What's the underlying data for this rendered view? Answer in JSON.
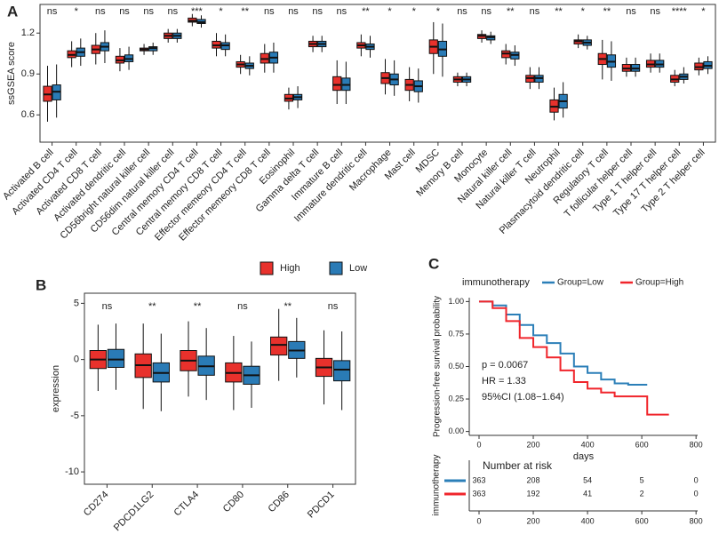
{
  "chart_data": [
    {
      "type": "box",
      "label": "A",
      "ylabel": "ssGSEA score",
      "ylim": [
        0.4,
        1.41
      ],
      "yticks": [
        0.6,
        0.9,
        1.2
      ],
      "categories": [
        "Activated B cell",
        "Activated CD4 T cell",
        "Activated CD8 T cell",
        "Activated dendritic cell",
        "CD56bright natural killer cell",
        "CD56dim natural killer cell",
        "Central memory CD4 T cell",
        "Central memory CD8 T cell",
        "Effector memeory CD4 T cell",
        "Effector memeory CD8 T cell",
        "Eosinophil",
        "Gamma delta T cell",
        "Immature  B cell",
        "Immature dendritic cell",
        "Macrophage",
        "Mast cell",
        "MDSC",
        "Memory B cell",
        "Monocyte",
        "Natural killer cell",
        "Natural killer T cell",
        "Neutrophil",
        "Plasmacytoid dendritic cell",
        "Regulatory T cell",
        "T follicular helper cell",
        "Type 1 T helper cell",
        "Type 17 T helper cell",
        "Type 2 T helper cell"
      ],
      "significance": [
        "ns",
        "*",
        "ns",
        "ns",
        "ns",
        "ns",
        "***",
        "*",
        "**",
        "ns",
        "ns",
        "ns",
        "ns",
        "**",
        "*",
        "*",
        "*",
        "ns",
        "ns",
        "**",
        "ns",
        "**",
        "*",
        "**",
        "ns",
        "ns",
        "****",
        "*"
      ],
      "series": [
        {
          "name": "High",
          "color": "#e8312c",
          "boxes": [
            [
              0.55,
              0.7,
              0.75,
              0.81,
              0.96
            ],
            [
              0.95,
              1.02,
              1.04,
              1.07,
              1.14
            ],
            [
              0.97,
              1.05,
              1.08,
              1.11,
              1.2
            ],
            [
              0.92,
              0.98,
              1.0,
              1.03,
              1.09
            ],
            [
              1.04,
              1.07,
              1.08,
              1.09,
              1.12
            ],
            [
              1.13,
              1.16,
              1.18,
              1.2,
              1.23
            ],
            [
              1.25,
              1.28,
              1.29,
              1.31,
              1.34
            ],
            [
              1.03,
              1.09,
              1.11,
              1.14,
              1.2
            ],
            [
              0.9,
              0.95,
              0.97,
              0.99,
              1.04
            ],
            [
              0.91,
              0.98,
              1.01,
              1.05,
              1.12
            ],
            [
              0.64,
              0.7,
              0.72,
              0.75,
              0.8
            ],
            [
              1.06,
              1.1,
              1.12,
              1.14,
              1.18
            ],
            [
              0.68,
              0.78,
              0.82,
              0.88,
              1.0
            ],
            [
              1.03,
              1.09,
              1.11,
              1.13,
              1.19
            ],
            [
              0.75,
              0.83,
              0.87,
              0.91,
              1.01
            ],
            [
              0.7,
              0.78,
              0.82,
              0.86,
              0.95
            ],
            [
              0.9,
              1.05,
              1.1,
              1.15,
              1.28
            ],
            [
              0.81,
              0.84,
              0.86,
              0.88,
              0.91
            ],
            [
              1.13,
              1.16,
              1.18,
              1.19,
              1.22
            ],
            [
              0.97,
              1.02,
              1.05,
              1.07,
              1.12
            ],
            [
              0.79,
              0.84,
              0.87,
              0.89,
              0.95
            ],
            [
              0.56,
              0.62,
              0.66,
              0.71,
              0.8
            ],
            [
              1.09,
              1.12,
              1.14,
              1.15,
              1.19
            ],
            [
              0.86,
              0.97,
              1.01,
              1.05,
              1.15
            ],
            [
              0.88,
              0.92,
              0.94,
              0.97,
              1.02
            ],
            [
              0.91,
              0.95,
              0.97,
              1.0,
              1.05
            ],
            [
              0.81,
              0.84,
              0.86,
              0.89,
              0.93
            ],
            [
              0.89,
              0.93,
              0.95,
              0.98,
              1.02
            ]
          ]
        },
        {
          "name": "Low",
          "color": "#2a7bb6",
          "boxes": [
            [
              0.58,
              0.71,
              0.77,
              0.82,
              0.97
            ],
            [
              0.96,
              1.03,
              1.06,
              1.09,
              1.16
            ],
            [
              0.98,
              1.07,
              1.1,
              1.13,
              1.22
            ],
            [
              0.93,
              0.99,
              1.01,
              1.04,
              1.1
            ],
            [
              1.04,
              1.07,
              1.09,
              1.1,
              1.13
            ],
            [
              1.13,
              1.16,
              1.18,
              1.2,
              1.23
            ],
            [
              1.24,
              1.27,
              1.28,
              1.3,
              1.33
            ],
            [
              1.03,
              1.08,
              1.11,
              1.13,
              1.19
            ],
            [
              0.89,
              0.94,
              0.96,
              0.98,
              1.03
            ],
            [
              0.91,
              0.98,
              1.02,
              1.06,
              1.13
            ],
            [
              0.65,
              0.71,
              0.73,
              0.75,
              0.81
            ],
            [
              1.06,
              1.1,
              1.12,
              1.14,
              1.18
            ],
            [
              0.68,
              0.78,
              0.82,
              0.87,
              0.99
            ],
            [
              1.02,
              1.08,
              1.1,
              1.12,
              1.18
            ],
            [
              0.74,
              0.82,
              0.86,
              0.9,
              1.0
            ],
            [
              0.69,
              0.77,
              0.81,
              0.85,
              0.94
            ],
            [
              0.88,
              1.03,
              1.08,
              1.14,
              1.27
            ],
            [
              0.81,
              0.84,
              0.86,
              0.88,
              0.91
            ],
            [
              1.12,
              1.15,
              1.17,
              1.18,
              1.21
            ],
            [
              0.96,
              1.01,
              1.04,
              1.06,
              1.11
            ],
            [
              0.79,
              0.84,
              0.87,
              0.89,
              0.95
            ],
            [
              0.58,
              0.65,
              0.7,
              0.75,
              0.84
            ],
            [
              1.08,
              1.11,
              1.13,
              1.15,
              1.18
            ],
            [
              0.85,
              0.95,
              0.99,
              1.04,
              1.14
            ],
            [
              0.88,
              0.92,
              0.94,
              0.97,
              1.02
            ],
            [
              0.91,
              0.95,
              0.97,
              1.0,
              1.05
            ],
            [
              0.83,
              0.86,
              0.88,
              0.9,
              0.95
            ],
            [
              0.9,
              0.94,
              0.96,
              0.99,
              1.03
            ]
          ]
        }
      ]
    },
    {
      "type": "box",
      "label": "B",
      "ylabel": "expression",
      "legend": "top",
      "ylim": [
        -11.1,
        5.9
      ],
      "yticks": [
        -10,
        -5,
        0,
        5
      ],
      "categories": [
        "CD274",
        "PDCD1LG2",
        "CTLA4",
        "CD80",
        "CD86",
        "PDCD1"
      ],
      "significance": [
        "ns",
        "**",
        "**",
        "ns",
        "**",
        "ns"
      ],
      "series": [
        {
          "name": "High",
          "color": "#e8312c",
          "boxes": [
            [
              -2.8,
              -0.8,
              0,
              0.8,
              3.1
            ],
            [
              -4.4,
              -1.6,
              -0.5,
              0.5,
              3.2
            ],
            [
              -3.3,
              -1.0,
              -0.1,
              0.8,
              3.4
            ],
            [
              -4.5,
              -2.0,
              -1.2,
              -0.3,
              2.1
            ],
            [
              -1.9,
              0.4,
              1.3,
              2.0,
              4.5
            ],
            [
              -4.0,
              -1.5,
              -0.7,
              0.1,
              2.6
            ]
          ]
        },
        {
          "name": "Low",
          "color": "#2a7bb6",
          "boxes": [
            [
              -2.7,
              -0.7,
              0,
              0.9,
              3.2
            ],
            [
              -4.6,
              -2.0,
              -1.2,
              -0.3,
              2.3
            ],
            [
              -3.6,
              -1.4,
              -0.6,
              0.3,
              2.8
            ],
            [
              -4.3,
              -2.2,
              -1.4,
              -0.6,
              1.6
            ],
            [
              -1.6,
              0.1,
              0.8,
              1.6,
              3.7
            ],
            [
              -4.5,
              -1.9,
              -0.9,
              -0.1,
              2.5
            ]
          ]
        }
      ]
    },
    {
      "type": "survival",
      "label": "C",
      "ylabel": "Progression-free survival probability",
      "xlabel": "days",
      "legend_title": "immunotherapy",
      "xlim": [
        -36,
        806
      ],
      "xticks": [
        0,
        200,
        400,
        600,
        800
      ],
      "ylim": [
        -0.03,
        1.03
      ],
      "yticks": [
        {
          "value": 0,
          "label": "0.00"
        },
        {
          "value": 0.25,
          "label": "0.25"
        },
        {
          "value": 0.5,
          "label": "0.50"
        },
        {
          "value": 0.75,
          "label": "0.75"
        },
        {
          "value": 1,
          "label": "1.00"
        }
      ],
      "annotations": [
        "p = 0.0067",
        "HR = 1.33",
        "95%CI (1.08−1.64)"
      ],
      "series": [
        {
          "name": "Group=Low",
          "color": "#2b7fb8",
          "x": [
            0,
            50,
            100,
            150,
            200,
            250,
            300,
            350,
            400,
            450,
            500,
            550,
            620
          ],
          "values": [
            1,
            0.97,
            0.9,
            0.82,
            0.74,
            0.68,
            0.6,
            0.5,
            0.45,
            0.4,
            0.37,
            0.36,
            0.36
          ]
        },
        {
          "name": "Group=High",
          "color": "#f0252b",
          "x": [
            0,
            50,
            100,
            150,
            200,
            250,
            300,
            350,
            400,
            450,
            500,
            620,
            700
          ],
          "values": [
            1,
            0.95,
            0.85,
            0.72,
            0.65,
            0.57,
            0.47,
            0.38,
            0.33,
            0.3,
            0.27,
            0.13,
            0.13
          ]
        }
      ],
      "risk_table": {
        "title": "Number at risk",
        "ylabel": "immunotherapy",
        "xticks": [
          0,
          200,
          400,
          600,
          800
        ],
        "rows": [
          {
            "color": "#2b7fb8",
            "values": [
              363,
              208,
              54,
              5,
              0
            ]
          },
          {
            "color": "#f0252b",
            "values": [
              363,
              192,
              41,
              2,
              0
            ]
          }
        ]
      }
    }
  ]
}
